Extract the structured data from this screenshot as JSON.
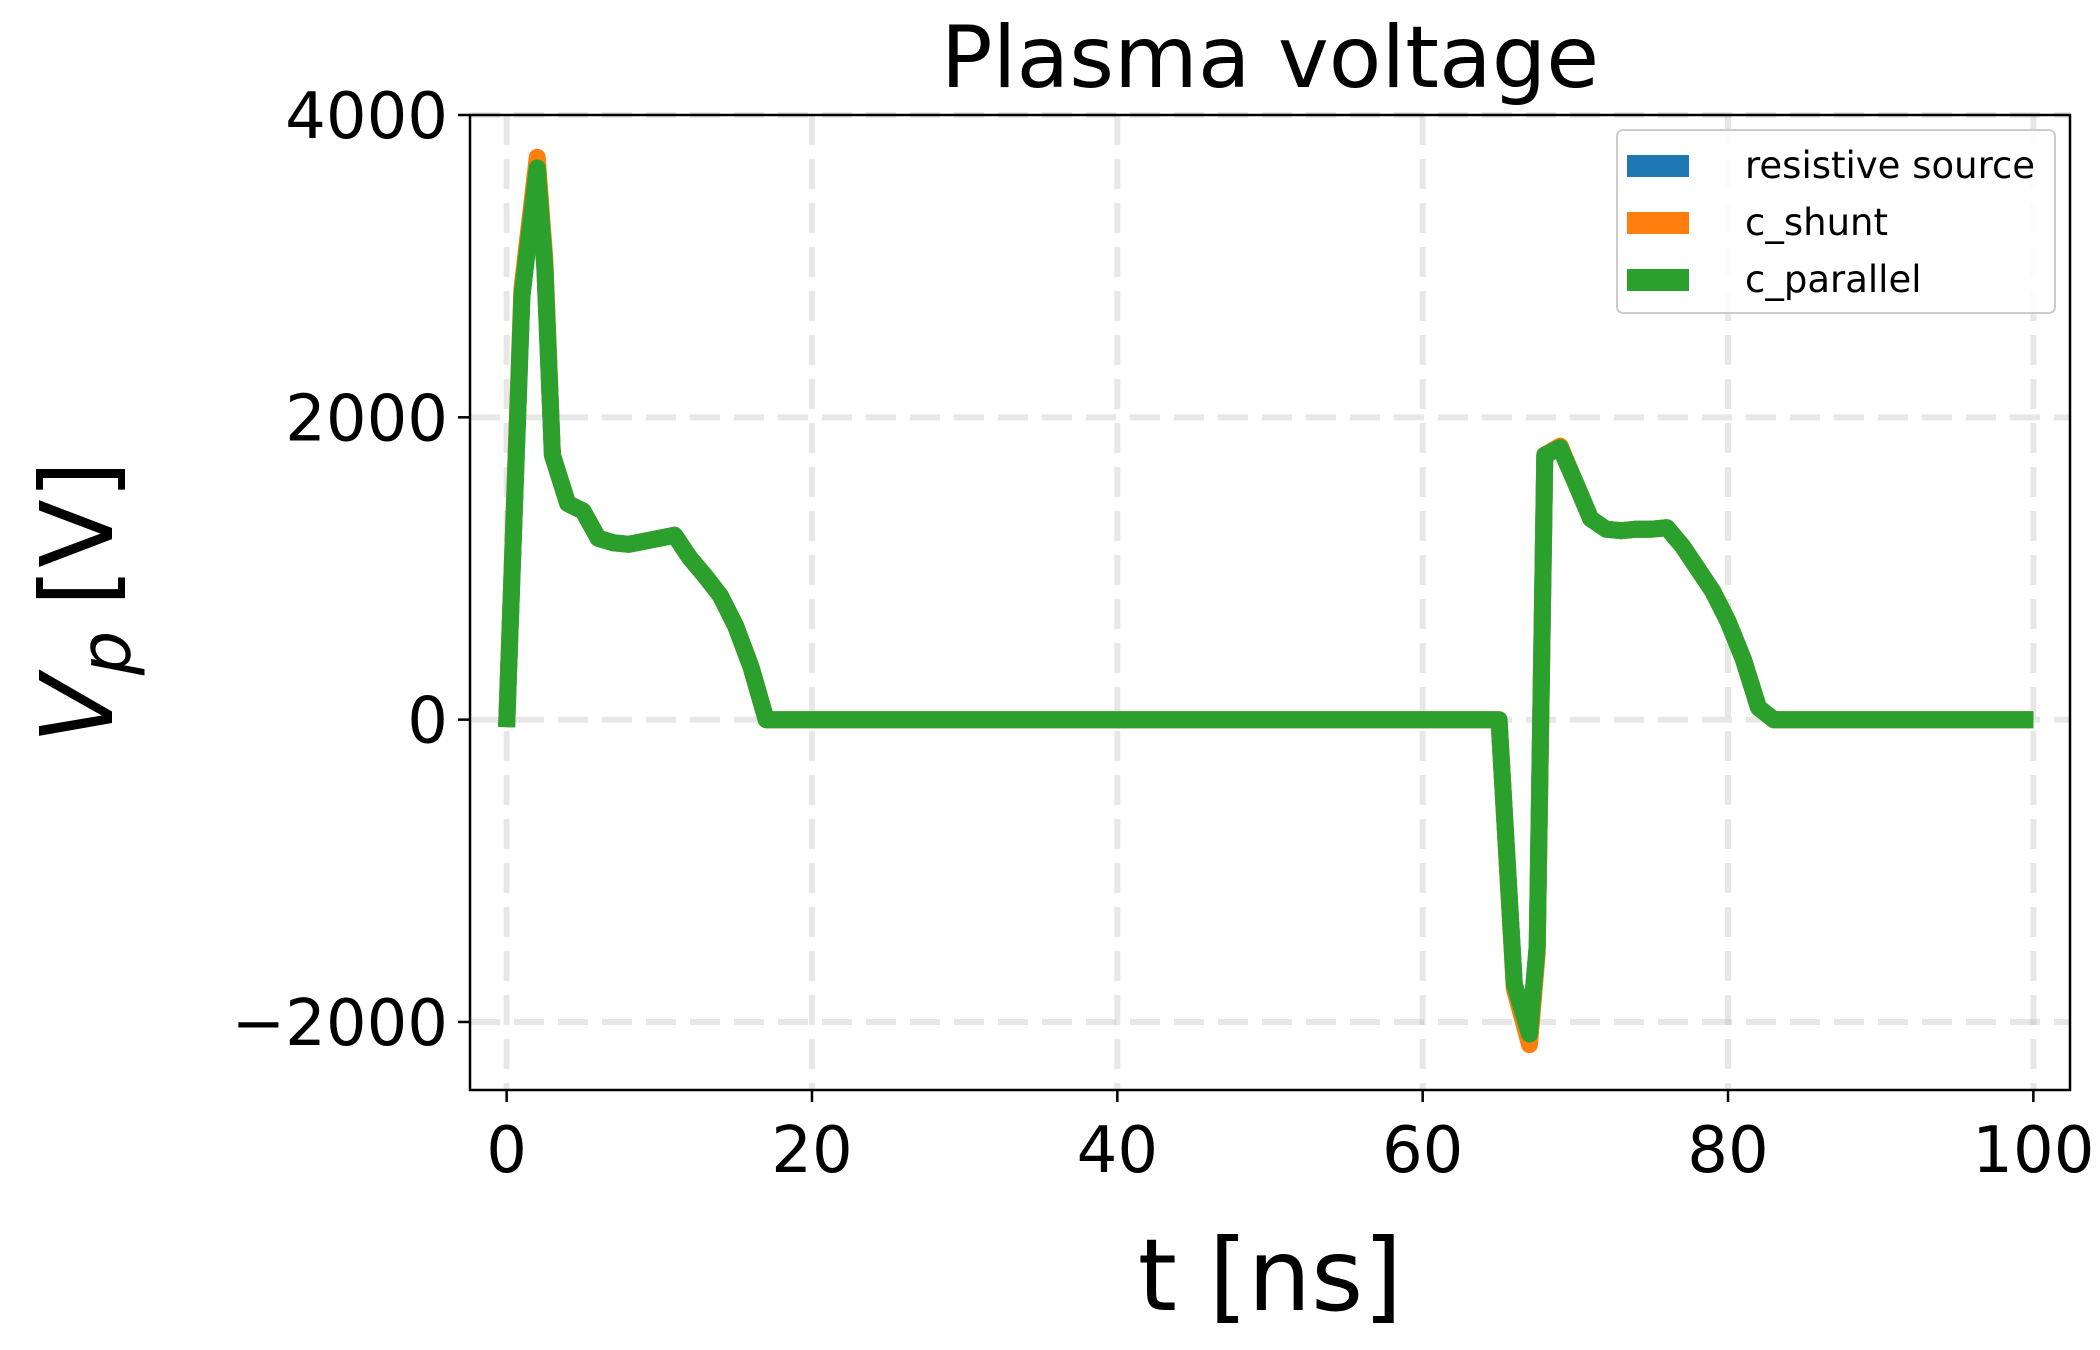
{
  "chart_data": {
    "type": "line",
    "title": "Plasma voltage",
    "xlabel": "t [ns]",
    "ylabel_main": "V",
    "ylabel_sub": "p",
    "ylabel_unit": "[V]",
    "xlim": [
      -2.4,
      102.4
    ],
    "ylim": [
      -2450,
      4000
    ],
    "xticks": [
      0,
      20,
      40,
      60,
      80,
      100
    ],
    "xtick_labels": [
      "0",
      "20",
      "40",
      "60",
      "80",
      "100"
    ],
    "yticks": [
      -2000,
      0,
      2000,
      4000
    ],
    "ytick_labels": [
      "−2000",
      "0",
      "2000",
      "4000"
    ],
    "grid": true,
    "legend_position": "top-right",
    "series": [
      {
        "name": "resistive source",
        "color": "#1f77b4",
        "x": [
          0,
          1,
          2,
          2.5,
          3,
          4,
          5,
          6,
          7,
          8,
          9,
          10,
          11,
          12,
          13,
          14,
          15,
          16,
          17,
          20,
          30,
          40,
          50,
          60,
          65,
          66,
          67,
          67.5,
          68,
          69,
          70,
          71,
          72,
          73,
          74,
          75,
          76,
          77,
          78,
          79,
          80,
          81,
          82,
          83,
          85,
          90,
          100
        ],
        "y": [
          -50,
          2800,
          3700,
          3000,
          1750,
          1430,
          1380,
          1200,
          1170,
          1160,
          1180,
          1200,
          1220,
          1070,
          950,
          820,
          620,
          350,
          0,
          0,
          0,
          0,
          0,
          0,
          0,
          -1750,
          -2100,
          -1500,
          1750,
          1800,
          1570,
          1330,
          1260,
          1250,
          1260,
          1260,
          1270,
          1150,
          1000,
          850,
          650,
          400,
          80,
          0,
          0,
          0,
          0
        ]
      },
      {
        "name": "c_shunt",
        "color": "#ff7f0e",
        "x": [
          0,
          1,
          2,
          2.5,
          3,
          4,
          5,
          6,
          7,
          8,
          9,
          10,
          11,
          12,
          13,
          14,
          15,
          16,
          17,
          20,
          30,
          40,
          50,
          60,
          65,
          66,
          67,
          67.5,
          68,
          69,
          70,
          71,
          72,
          73,
          74,
          75,
          76,
          77,
          78,
          79,
          80,
          81,
          82,
          83,
          85,
          90,
          100
        ],
        "y": [
          -50,
          2850,
          3720,
          3050,
          1750,
          1430,
          1380,
          1200,
          1170,
          1160,
          1180,
          1200,
          1220,
          1070,
          950,
          820,
          620,
          350,
          0,
          0,
          0,
          0,
          0,
          0,
          0,
          -1780,
          -2150,
          -1550,
          1750,
          1810,
          1570,
          1330,
          1260,
          1250,
          1260,
          1260,
          1270,
          1150,
          1000,
          850,
          650,
          400,
          80,
          0,
          0,
          0,
          0
        ]
      },
      {
        "name": "c_parallel",
        "color": "#2ca02c",
        "x": [
          0,
          1,
          2,
          2.5,
          3,
          4,
          5,
          6,
          7,
          8,
          9,
          10,
          11,
          12,
          13,
          14,
          15,
          16,
          17,
          20,
          30,
          40,
          50,
          60,
          65,
          66,
          67,
          67.5,
          68,
          69,
          70,
          71,
          72,
          73,
          74,
          75,
          76,
          77,
          78,
          79,
          80,
          81,
          82,
          83,
          85,
          90,
          100
        ],
        "y": [
          -50,
          2800,
          3650,
          3000,
          1750,
          1430,
          1380,
          1200,
          1170,
          1160,
          1180,
          1200,
          1220,
          1070,
          950,
          820,
          620,
          350,
          0,
          0,
          0,
          0,
          0,
          0,
          0,
          -1750,
          -2080,
          -1500,
          1750,
          1800,
          1570,
          1330,
          1260,
          1250,
          1260,
          1260,
          1270,
          1150,
          1000,
          850,
          650,
          400,
          80,
          0,
          0,
          0,
          0
        ]
      }
    ]
  }
}
